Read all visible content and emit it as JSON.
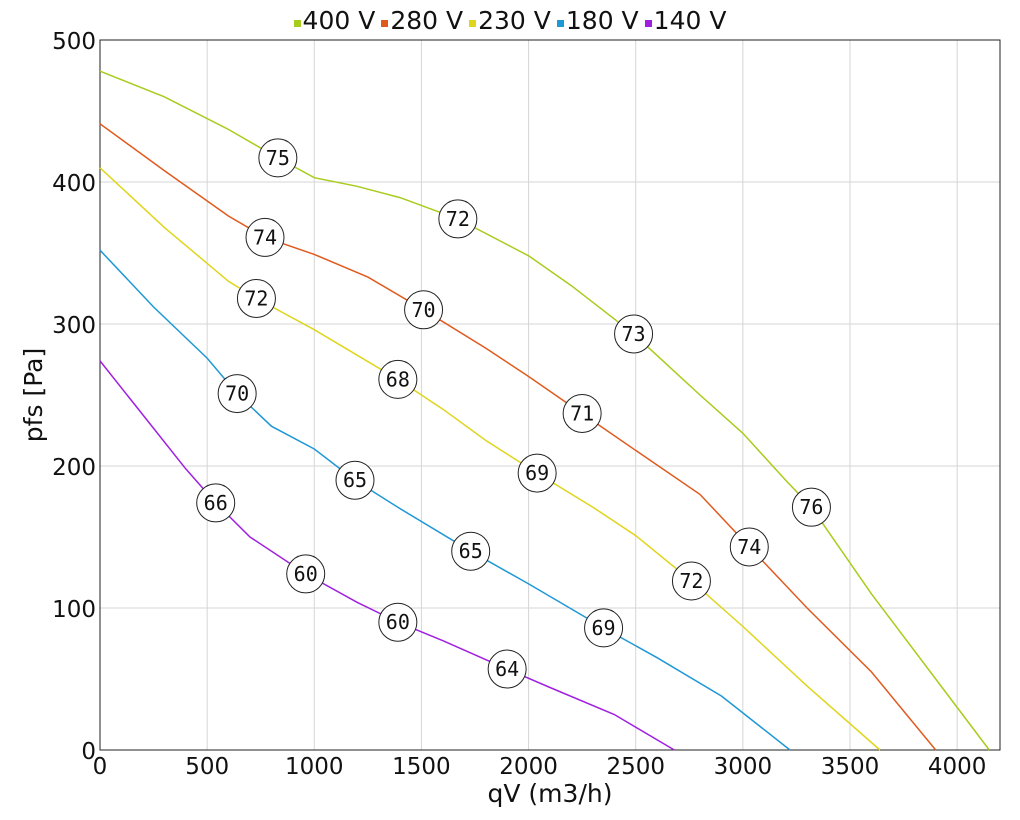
{
  "chart_data": {
    "type": "line",
    "xlabel": "qV (m3/h)",
    "ylabel": "pfs [Pa]",
    "xlim": [
      0,
      4200
    ],
    "ylim": [
      0,
      500
    ],
    "x_ticks": [
      0,
      500,
      1000,
      1500,
      2000,
      2500,
      3000,
      3500,
      4000
    ],
    "y_ticks": [
      0,
      100,
      200,
      300,
      400,
      500
    ],
    "grid": true,
    "legend_position": "top-center",
    "series": [
      {
        "name": "400 V",
        "color": "#a8cc1c",
        "points": [
          [
            0,
            478
          ],
          [
            300,
            460
          ],
          [
            600,
            437
          ],
          [
            830,
            417
          ],
          [
            1000,
            403
          ],
          [
            1200,
            397
          ],
          [
            1400,
            389
          ],
          [
            1670,
            374
          ],
          [
            2000,
            348
          ],
          [
            2200,
            327
          ],
          [
            2490,
            293
          ],
          [
            2800,
            250
          ],
          [
            3000,
            223
          ],
          [
            3200,
            190
          ],
          [
            3320,
            171
          ],
          [
            3600,
            110
          ],
          [
            3900,
            50
          ],
          [
            4150,
            0
          ]
        ],
        "labels": [
          {
            "x": 830,
            "y": 417,
            "text": "75"
          },
          {
            "x": 1670,
            "y": 374,
            "text": "72"
          },
          {
            "x": 2490,
            "y": 293,
            "text": "73"
          },
          {
            "x": 3320,
            "y": 171,
            "text": "76"
          }
        ]
      },
      {
        "name": "280 V",
        "color": "#e05a1e",
        "points": [
          [
            0,
            441
          ],
          [
            300,
            408
          ],
          [
            600,
            376
          ],
          [
            770,
            361
          ],
          [
            1000,
            349
          ],
          [
            1250,
            333
          ],
          [
            1510,
            310
          ],
          [
            1800,
            283
          ],
          [
            2000,
            263
          ],
          [
            2250,
            237
          ],
          [
            2500,
            211
          ],
          [
            2800,
            180
          ],
          [
            3030,
            143
          ],
          [
            3300,
            100
          ],
          [
            3600,
            55
          ],
          [
            3900,
            0
          ]
        ],
        "labels": [
          {
            "x": 770,
            "y": 361,
            "text": "74"
          },
          {
            "x": 1510,
            "y": 310,
            "text": "70"
          },
          {
            "x": 2250,
            "y": 237,
            "text": "71"
          },
          {
            "x": 3030,
            "y": 143,
            "text": "74"
          }
        ]
      },
      {
        "name": "230 V",
        "color": "#dfd51c",
        "points": [
          [
            0,
            410
          ],
          [
            300,
            368
          ],
          [
            600,
            330
          ],
          [
            730,
            318
          ],
          [
            1000,
            296
          ],
          [
            1200,
            278
          ],
          [
            1390,
            261
          ],
          [
            1600,
            240
          ],
          [
            1800,
            218
          ],
          [
            2040,
            195
          ],
          [
            2300,
            171
          ],
          [
            2500,
            151
          ],
          [
            2760,
            119
          ],
          [
            3000,
            87
          ],
          [
            3300,
            45
          ],
          [
            3640,
            0
          ]
        ],
        "labels": [
          {
            "x": 730,
            "y": 318,
            "text": "72"
          },
          {
            "x": 1390,
            "y": 261,
            "text": "68"
          },
          {
            "x": 2040,
            "y": 195,
            "text": "69"
          },
          {
            "x": 2760,
            "y": 119,
            "text": "72"
          }
        ]
      },
      {
        "name": "180 V",
        "color": "#1f98d6",
        "points": [
          [
            0,
            352
          ],
          [
            250,
            312
          ],
          [
            500,
            276
          ],
          [
            640,
            251
          ],
          [
            800,
            228
          ],
          [
            1000,
            212
          ],
          [
            1190,
            190
          ],
          [
            1400,
            170
          ],
          [
            1730,
            140
          ],
          [
            2000,
            117
          ],
          [
            2350,
            86
          ],
          [
            2600,
            65
          ],
          [
            2900,
            38
          ],
          [
            3220,
            0
          ]
        ],
        "labels": [
          {
            "x": 640,
            "y": 251,
            "text": "70"
          },
          {
            "x": 1190,
            "y": 190,
            "text": "65"
          },
          {
            "x": 1730,
            "y": 140,
            "text": "65"
          },
          {
            "x": 2350,
            "y": 86,
            "text": "69"
          }
        ]
      },
      {
        "name": "140 V",
        "color": "#a020e0",
        "points": [
          [
            0,
            274
          ],
          [
            200,
            236
          ],
          [
            400,
            198
          ],
          [
            540,
            174
          ],
          [
            700,
            150
          ],
          [
            960,
            124
          ],
          [
            1200,
            104
          ],
          [
            1390,
            90
          ],
          [
            1600,
            77
          ],
          [
            1900,
            57
          ],
          [
            2100,
            44
          ],
          [
            2400,
            25
          ],
          [
            2680,
            0
          ]
        ],
        "labels": [
          {
            "x": 540,
            "y": 174,
            "text": "66"
          },
          {
            "x": 960,
            "y": 124,
            "text": "60"
          },
          {
            "x": 1390,
            "y": 90,
            "text": "60"
          },
          {
            "x": 1900,
            "y": 57,
            "text": "64"
          }
        ]
      }
    ]
  }
}
